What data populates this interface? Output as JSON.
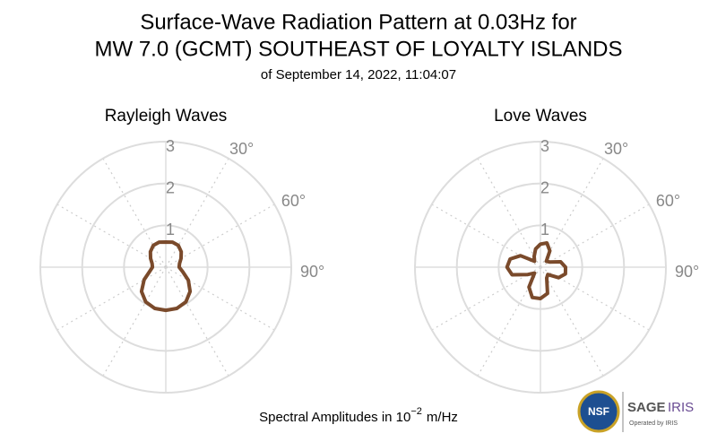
{
  "title": [
    "Surface-Wave Radiation Pattern at 0.03Hz for",
    "MW 7.0 (GCMT) SOUTHEAST OF LOYALTY ISLANDS"
  ],
  "subtitle": "of September 14, 2022, 11:04:07",
  "footer": {
    "text": "Spectral Amplitudes in 10",
    "superscript": "−2",
    "unit": "m/Hz"
  },
  "logos": {
    "nsf": "NSF",
    "sage": "SAGE",
    "iris": "IRIS",
    "operated": "Operated by IRIS"
  },
  "chart_data": [
    {
      "type": "polar",
      "title": "Rayleigh Waves",
      "color": "#7a4a2b",
      "theta": [
        0,
        15,
        30,
        45,
        60,
        75,
        90,
        105,
        120,
        135,
        150,
        165,
        180,
        195,
        210,
        225,
        240,
        255,
        270,
        285,
        300,
        315,
        330,
        345
      ],
      "values": [
        0.6,
        0.62,
        0.6,
        0.52,
        0.42,
        0.34,
        0.32,
        0.42,
        0.62,
        0.82,
        0.96,
        1.02,
        1.03,
        1.02,
        0.96,
        0.82,
        0.6,
        0.4,
        0.32,
        0.34,
        0.42,
        0.52,
        0.6,
        0.62
      ],
      "rlim": [
        0,
        3
      ],
      "rticks": [
        1,
        2,
        3
      ],
      "thetaticks": [
        {
          "value": 30,
          "label": "30°"
        },
        {
          "value": 60,
          "label": "60°"
        },
        {
          "value": 90,
          "label": "90°"
        }
      ]
    },
    {
      "type": "polar",
      "title": "Love Waves",
      "color": "#7a4a2b",
      "theta": [
        0,
        15,
        30,
        45,
        60,
        75,
        90,
        105,
        120,
        135,
        150,
        165,
        180,
        195,
        210,
        225,
        240,
        255,
        270,
        285,
        300,
        315,
        330,
        345
      ],
      "values": [
        0.55,
        0.6,
        0.45,
        0.2,
        0.25,
        0.5,
        0.6,
        0.62,
        0.5,
        0.25,
        0.3,
        0.65,
        0.75,
        0.75,
        0.55,
        0.2,
        0.35,
        0.7,
        0.8,
        0.75,
        0.55,
        0.2,
        0.3,
        0.45
      ],
      "rlim": [
        0,
        3
      ],
      "rticks": [
        1,
        2,
        3
      ],
      "thetaticks": [
        {
          "value": 30,
          "label": "30°"
        },
        {
          "value": 60,
          "label": "60°"
        },
        {
          "value": 90,
          "label": "90°"
        }
      ]
    }
  ]
}
